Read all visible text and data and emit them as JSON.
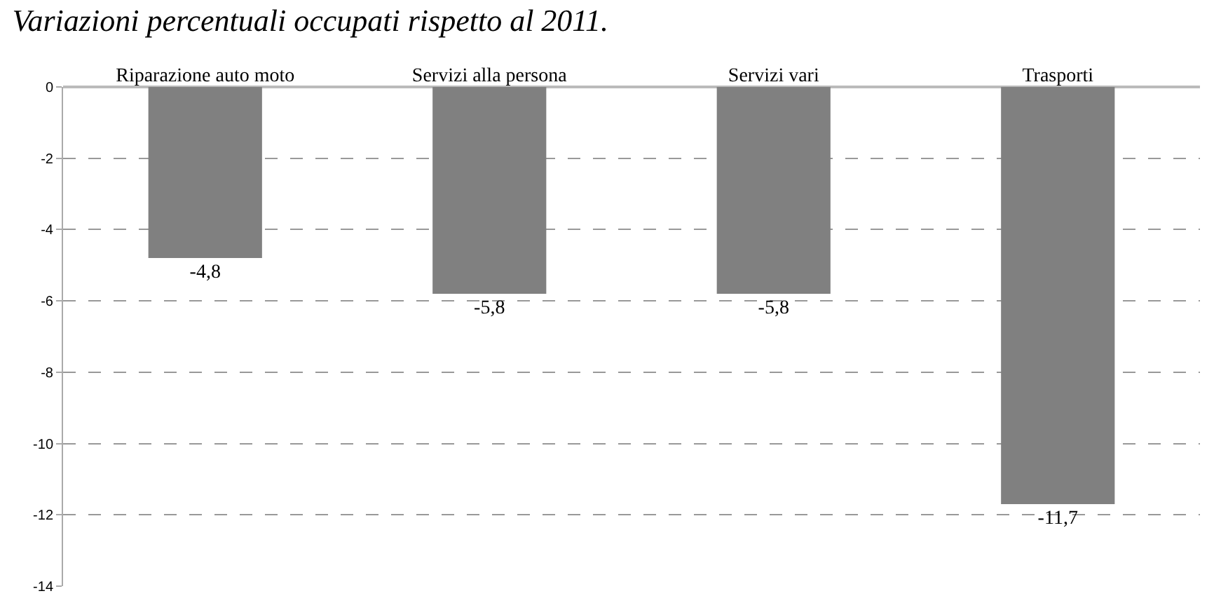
{
  "chart_data": {
    "type": "bar",
    "title": "Variazioni percentuali occupati rispetto al 2011.",
    "categories": [
      "Riparazione auto moto",
      "Servizi alla persona",
      "Servizi vari",
      "Trasporti"
    ],
    "values": [
      -4.8,
      -5.8,
      -5.8,
      -11.7
    ],
    "value_labels": [
      "-4,8",
      "-5,8",
      "-5,8",
      "-11,7"
    ],
    "color": "#808080",
    "ylim": [
      -14,
      0
    ],
    "yticks": [
      0,
      -2,
      -4,
      -6,
      -8,
      -10,
      -12,
      -14
    ],
    "grid": "y",
    "legend": false
  }
}
